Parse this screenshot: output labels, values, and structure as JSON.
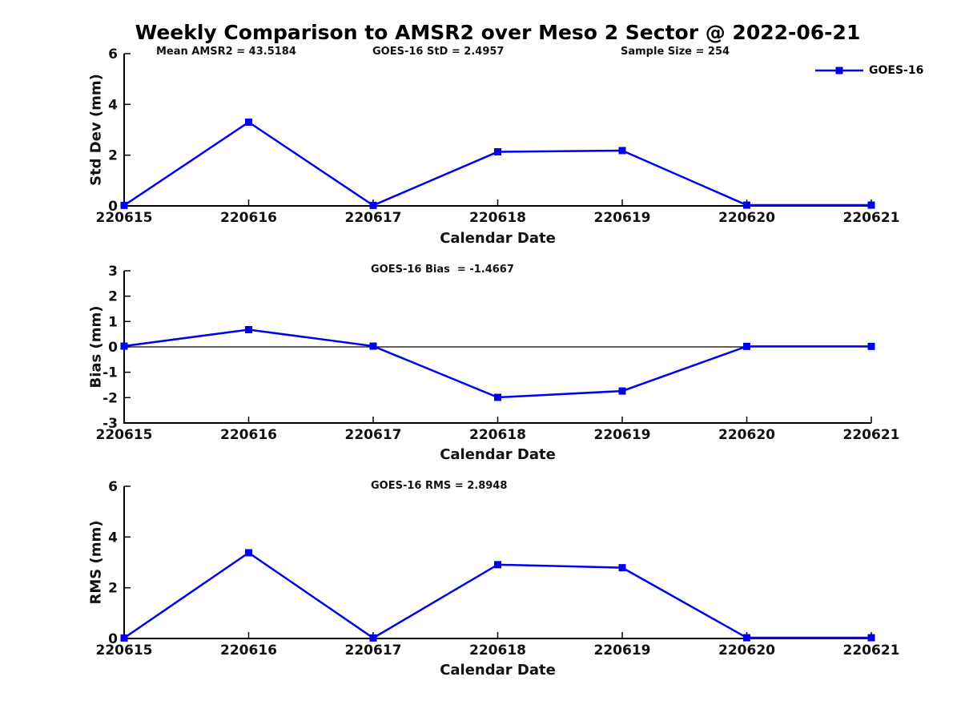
{
  "title": "Weekly Comparison to AMSR2 over Meso 2 Sector @ 2022-06-21",
  "legend": {
    "label": "GOES-16",
    "color": "#0000EE",
    "marker": "square"
  },
  "colors": {
    "line": "#0000EE",
    "axis": "#000000",
    "text": "#111111",
    "background": "#FFFFFF"
  },
  "chart_data": [
    {
      "type": "line",
      "name": "std-dev",
      "title": "",
      "annotations": [
        "Mean AMSR2 = 43.5184",
        "GOES-16 StD = 2.4957",
        "Sample Size = 254"
      ],
      "xlabel": "Calendar Date",
      "ylabel": "Std Dev (mm)",
      "categories": [
        "220615",
        "220616",
        "220617",
        "220618",
        "220619",
        "220620",
        "220621"
      ],
      "series": [
        {
          "name": "GOES-16",
          "color": "#0000EE",
          "marker": "square",
          "values": [
            0.02,
            3.3,
            0.02,
            2.13,
            2.18,
            0.03,
            0.03
          ]
        }
      ],
      "ylim": [
        0,
        6
      ],
      "yticks": [
        0,
        2,
        4,
        6
      ],
      "grid": false,
      "zero_line": false,
      "legend_position": "upper-right-outside"
    },
    {
      "type": "line",
      "name": "bias",
      "title": "",
      "annotations": [
        "GOES-16 Bias  = -1.4667"
      ],
      "xlabel": "Calendar Date",
      "ylabel": "Bias (mm)",
      "categories": [
        "220615",
        "220616",
        "220617",
        "220618",
        "220619",
        "220620",
        "220621"
      ],
      "series": [
        {
          "name": "GOES-16",
          "color": "#0000EE",
          "marker": "square",
          "values": [
            0.03,
            0.68,
            0.03,
            -1.99,
            -1.74,
            0.02,
            0.02
          ]
        }
      ],
      "ylim": [
        -3,
        3
      ],
      "yticks": [
        -3,
        -2,
        -1,
        0,
        1,
        2,
        3
      ],
      "grid": false,
      "zero_line": true,
      "legend_position": "none"
    },
    {
      "type": "line",
      "name": "rms",
      "title": "",
      "annotations": [
        "GOES-16 RMS = 2.8948"
      ],
      "xlabel": "Calendar Date",
      "ylabel": "RMS (mm)",
      "categories": [
        "220615",
        "220616",
        "220617",
        "220618",
        "220619",
        "220620",
        "220621"
      ],
      "series": [
        {
          "name": "GOES-16",
          "color": "#0000EE",
          "marker": "square",
          "values": [
            0.02,
            3.38,
            0.02,
            2.91,
            2.79,
            0.03,
            0.03
          ]
        }
      ],
      "ylim": [
        0,
        6
      ],
      "yticks": [
        0,
        2,
        4,
        6
      ],
      "grid": false,
      "zero_line": false,
      "legend_position": "none"
    }
  ]
}
